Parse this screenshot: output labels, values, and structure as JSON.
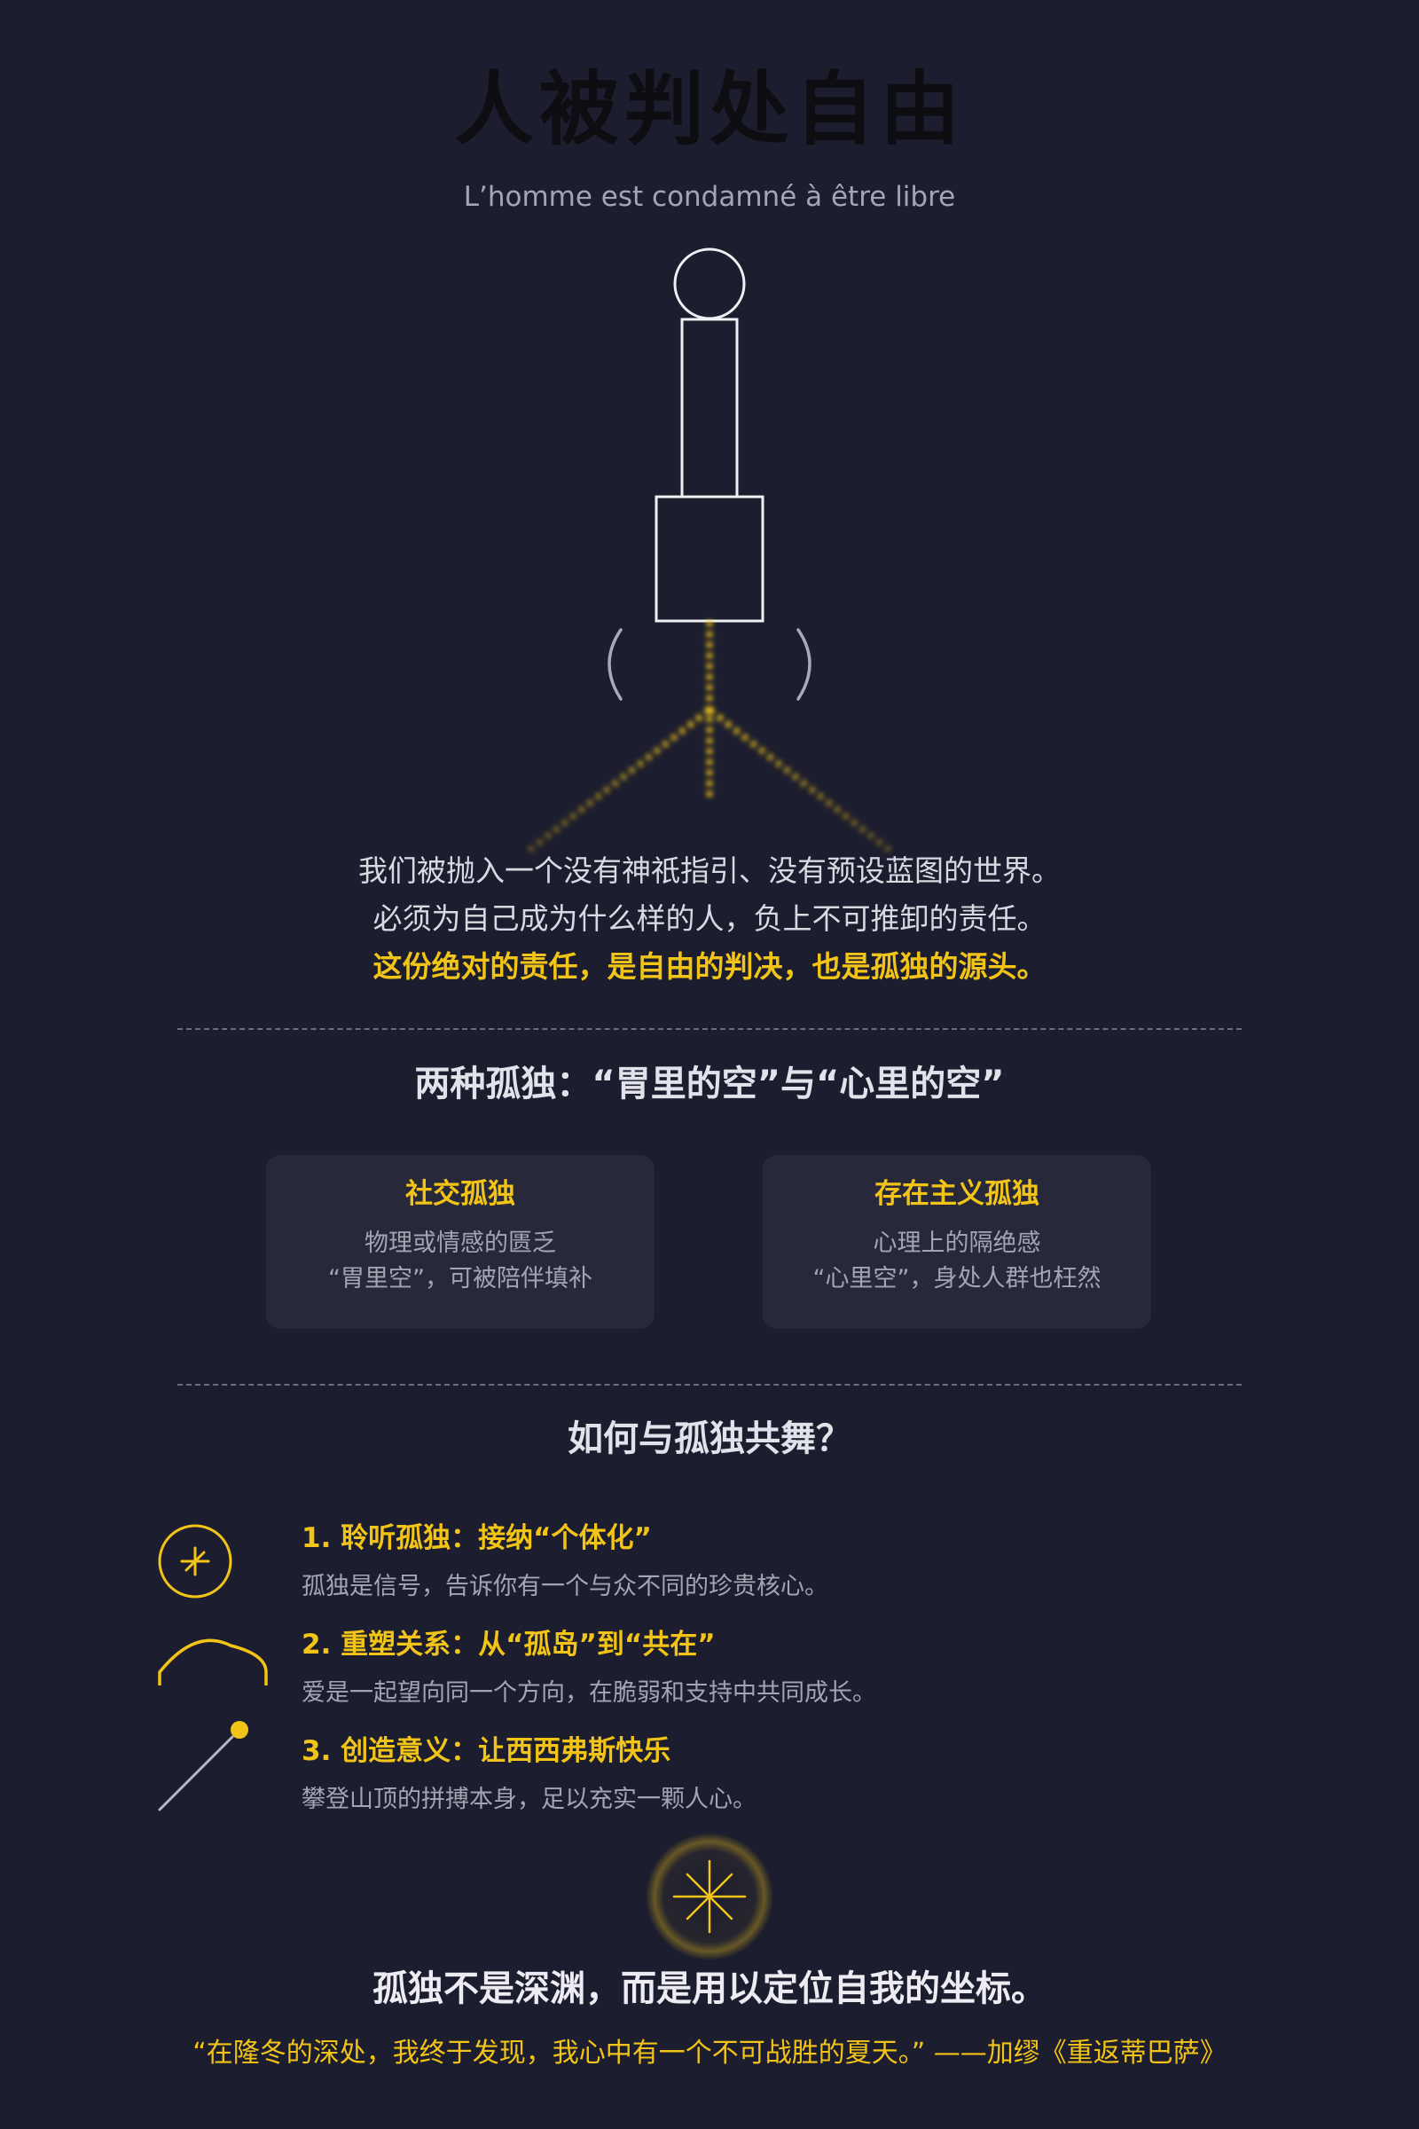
{
  "header": {
    "title": "人被判处自由",
    "subtitle": "L’homme est condamné à être libre"
  },
  "illustration": {
    "figure_icon": "lone-standing-figure",
    "path_icon": "branching-dotted-path"
  },
  "intro": {
    "line1": "我们被抛入一个没有神祇指引、没有预设蓝图的世界。",
    "line2": "必须为自己成为什么样的人，负上不可推卸的责任。",
    "highlight": "这份绝对的责任，是自由的判决，也是孤独的源头。"
  },
  "two_kinds": {
    "heading": "两种孤独：“胃里的空”与“心里的空”",
    "cards": [
      {
        "title": "社交孤独",
        "line1": "物理或情感的匮乏",
        "line2": "“胃里空”，可被陪伴填补"
      },
      {
        "title": "存在主义孤独",
        "line1": "心理上的隔绝感",
        "line2": "“心里空”，身处人群也枉然"
      }
    ]
  },
  "dance": {
    "heading": "如何与孤独共舞？",
    "steps": [
      {
        "icon": "circle-star-icon",
        "title": "1. 聆听孤独：接纳“个体化”",
        "desc": "孤独是信号，告诉你有一个与众不同的珍贵核心。"
      },
      {
        "icon": "arch-icon",
        "title": "2. 重塑关系：从“孤岛”到“共在”",
        "desc": "爱是一起望向同一个方向，在脆弱和支持中共同成长。"
      },
      {
        "icon": "slope-ball-icon",
        "title": "3. 创造意义：让西西弗斯快乐",
        "desc": "攀登山顶的拼搏本身，足以充实一颗人心。"
      }
    ]
  },
  "closing": {
    "icon": "glowing-star-icon",
    "statement": "孤独不是深渊，而是用以定位自我的坐标。",
    "quote": "“在隆冬的深处，我终于发现，我心中有一个不可战胜的夏天。” ——加缪《重返蒂巴萨》"
  },
  "colors": {
    "background": "#1c1d2e",
    "accent": "#f2c417",
    "card": "#272839",
    "muted_text": "#a4a5b3"
  }
}
